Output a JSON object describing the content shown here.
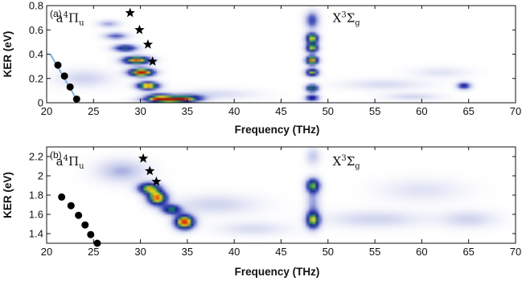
{
  "chart_data": [
    {
      "type": "heatmap",
      "panel_label": "(a)",
      "xlabel": "Frequency (THz)",
      "ylabel": "KER (eV)",
      "xlim": [
        20,
        70
      ],
      "ylim": [
        0,
        0.8
      ],
      "xticks": [
        20,
        25,
        30,
        35,
        40,
        45,
        50,
        55,
        60,
        65,
        70
      ],
      "yticks": [
        0,
        0.2,
        0.4,
        0.6,
        0.8
      ],
      "ytick_labels": [
        "0",
        "0.2",
        "0.4",
        "0.6",
        "0.8"
      ],
      "annotations": [
        {
          "text": "a",
          "sup": "4",
          "main": "Π",
          "sub": "u",
          "x": 21.0,
          "y": 0.665
        },
        {
          "text": "X",
          "sup": "3",
          "main": "Σ",
          "sub": "g",
          "x": 50.5,
          "y": 0.665
        }
      ],
      "colormap": [
        "#ffffff",
        "#c8cdec",
        "#5560c0",
        "#141a9a",
        "#1c8a5a",
        "#e8e020",
        "#ef5010",
        "#b80000"
      ],
      "blobs": [
        {
          "x": 29.6,
          "y": 0.35,
          "i": 0.85,
          "sx": 1.0,
          "sy": 0.022
        },
        {
          "x": 30.1,
          "y": 0.25,
          "i": 1.0,
          "sx": 0.9,
          "sy": 0.022
        },
        {
          "x": 30.8,
          "y": 0.14,
          "i": 0.85,
          "sx": 0.8,
          "sy": 0.022
        },
        {
          "x": 28.4,
          "y": 0.45,
          "i": 0.5,
          "sx": 0.9,
          "sy": 0.02
        },
        {
          "x": 27.4,
          "y": 0.55,
          "i": 0.3,
          "sx": 0.9,
          "sy": 0.02
        },
        {
          "x": 26.6,
          "y": 0.65,
          "i": 0.2,
          "sx": 0.8,
          "sy": 0.02
        },
        {
          "x": 33.0,
          "y": 0.025,
          "i": 1.0,
          "sx": 1.6,
          "sy": 0.014
        },
        {
          "x": 32.0,
          "y": 0.05,
          "i": 0.5,
          "sx": 1.0,
          "sy": 0.02
        },
        {
          "x": 35.0,
          "y": 0.04,
          "i": 0.45,
          "sx": 1.2,
          "sy": 0.02
        },
        {
          "x": 48.3,
          "y": 0.53,
          "i": 0.75,
          "sx": 0.45,
          "sy": 0.03
        },
        {
          "x": 48.3,
          "y": 0.45,
          "i": 0.7,
          "sx": 0.45,
          "sy": 0.025
        },
        {
          "x": 48.3,
          "y": 0.35,
          "i": 0.85,
          "sx": 0.45,
          "sy": 0.025
        },
        {
          "x": 48.3,
          "y": 0.25,
          "i": 0.7,
          "sx": 0.45,
          "sy": 0.022
        },
        {
          "x": 48.3,
          "y": 0.12,
          "i": 0.6,
          "sx": 0.45,
          "sy": 0.022
        },
        {
          "x": 48.3,
          "y": 0.04,
          "i": 0.5,
          "sx": 0.5,
          "sy": 0.018
        },
        {
          "x": 48.3,
          "y": 0.68,
          "i": 0.35,
          "sx": 0.5,
          "sy": 0.05
        },
        {
          "x": 64.5,
          "y": 0.14,
          "i": 0.45,
          "sx": 0.5,
          "sy": 0.02
        },
        {
          "x": 24.0,
          "y": 0.2,
          "i": 0.12,
          "sx": 2.0,
          "sy": 0.05
        },
        {
          "x": 38.0,
          "y": 0.07,
          "i": 0.1,
          "sx": 3.0,
          "sy": 0.03
        },
        {
          "x": 56.0,
          "y": 0.15,
          "i": 0.1,
          "sx": 3.0,
          "sy": 0.03
        },
        {
          "x": 59.0,
          "y": 0.05,
          "i": 0.12,
          "sx": 2.0,
          "sy": 0.02
        },
        {
          "x": 62.0,
          "y": 0.25,
          "i": 0.08,
          "sx": 2.0,
          "sy": 0.03
        }
      ],
      "circles": [
        {
          "x": 21.2,
          "y": 0.31
        },
        {
          "x": 21.9,
          "y": 0.22
        },
        {
          "x": 22.5,
          "y": 0.13
        },
        {
          "x": 23.2,
          "y": 0.03
        }
      ],
      "line": [
        {
          "x": 20.4,
          "y": 0.4
        },
        {
          "x": 23.4,
          "y": 0.0
        }
      ],
      "stars": [
        {
          "x": 28.9,
          "y": 0.74
        },
        {
          "x": 29.9,
          "y": 0.6
        },
        {
          "x": 30.8,
          "y": 0.48
        },
        {
          "x": 31.3,
          "y": 0.34
        }
      ]
    },
    {
      "type": "heatmap",
      "panel_label": "(b)",
      "xlabel": "Frequency (THz)",
      "ylabel": "KER (eV)",
      "xlim": [
        20,
        70
      ],
      "ylim": [
        1.3,
        2.3
      ],
      "xticks": [
        20,
        25,
        30,
        35,
        40,
        45,
        50,
        55,
        60,
        65,
        70
      ],
      "yticks": [
        1.4,
        1.6,
        1.8,
        2.0,
        2.2
      ],
      "ytick_labels": [
        "1.4",
        "1.6",
        "1.8",
        "2",
        "2.2"
      ],
      "annotations": [
        {
          "text": "a",
          "sup": "4",
          "main": "Π",
          "sub": "u",
          "x": 21.0,
          "y": 2.11
        },
        {
          "text": "X",
          "sup": "3",
          "main": "Σ",
          "sub": "g",
          "x": 50.5,
          "y": 2.11
        }
      ],
      "colormap": [
        "#ffffff",
        "#c8cdec",
        "#5560c0",
        "#141a9a",
        "#1c8a5a",
        "#e8e020",
        "#ef5010",
        "#b80000"
      ],
      "blobs": [
        {
          "x": 30.9,
          "y": 1.87,
          "i": 0.7,
          "sx": 0.8,
          "sy": 0.04
        },
        {
          "x": 31.8,
          "y": 1.77,
          "i": 0.85,
          "sx": 0.7,
          "sy": 0.05
        },
        {
          "x": 33.3,
          "y": 1.65,
          "i": 0.55,
          "sx": 0.7,
          "sy": 0.035
        },
        {
          "x": 34.7,
          "y": 1.52,
          "i": 0.95,
          "sx": 0.7,
          "sy": 0.05
        },
        {
          "x": 48.4,
          "y": 1.9,
          "i": 0.6,
          "sx": 0.5,
          "sy": 0.05
        },
        {
          "x": 48.4,
          "y": 1.54,
          "i": 0.65,
          "sx": 0.5,
          "sy": 0.06
        },
        {
          "x": 48.4,
          "y": 1.72,
          "i": 0.2,
          "sx": 0.5,
          "sy": 0.12
        },
        {
          "x": 48.4,
          "y": 2.2,
          "i": 0.15,
          "sx": 0.5,
          "sy": 0.06
        },
        {
          "x": 28.0,
          "y": 2.05,
          "i": 0.18,
          "sx": 1.8,
          "sy": 0.08
        },
        {
          "x": 38.0,
          "y": 1.7,
          "i": 0.12,
          "sx": 3.0,
          "sy": 0.07
        },
        {
          "x": 55.0,
          "y": 1.55,
          "i": 0.12,
          "sx": 3.5,
          "sy": 0.06
        },
        {
          "x": 60.0,
          "y": 1.85,
          "i": 0.08,
          "sx": 3.0,
          "sy": 0.08
        },
        {
          "x": 65.0,
          "y": 1.55,
          "i": 0.12,
          "sx": 2.0,
          "sy": 0.06
        },
        {
          "x": 42.0,
          "y": 1.45,
          "i": 0.1,
          "sx": 2.5,
          "sy": 0.05
        }
      ],
      "circles": [
        {
          "x": 21.6,
          "y": 1.78
        },
        {
          "x": 22.6,
          "y": 1.69
        },
        {
          "x": 23.4,
          "y": 1.59
        },
        {
          "x": 24.1,
          "y": 1.49
        },
        {
          "x": 24.7,
          "y": 1.39
        },
        {
          "x": 25.4,
          "y": 1.3
        }
      ],
      "line": null,
      "stars": [
        {
          "x": 30.3,
          "y": 2.18
        },
        {
          "x": 31.0,
          "y": 2.05
        },
        {
          "x": 31.7,
          "y": 1.94
        }
      ]
    }
  ]
}
